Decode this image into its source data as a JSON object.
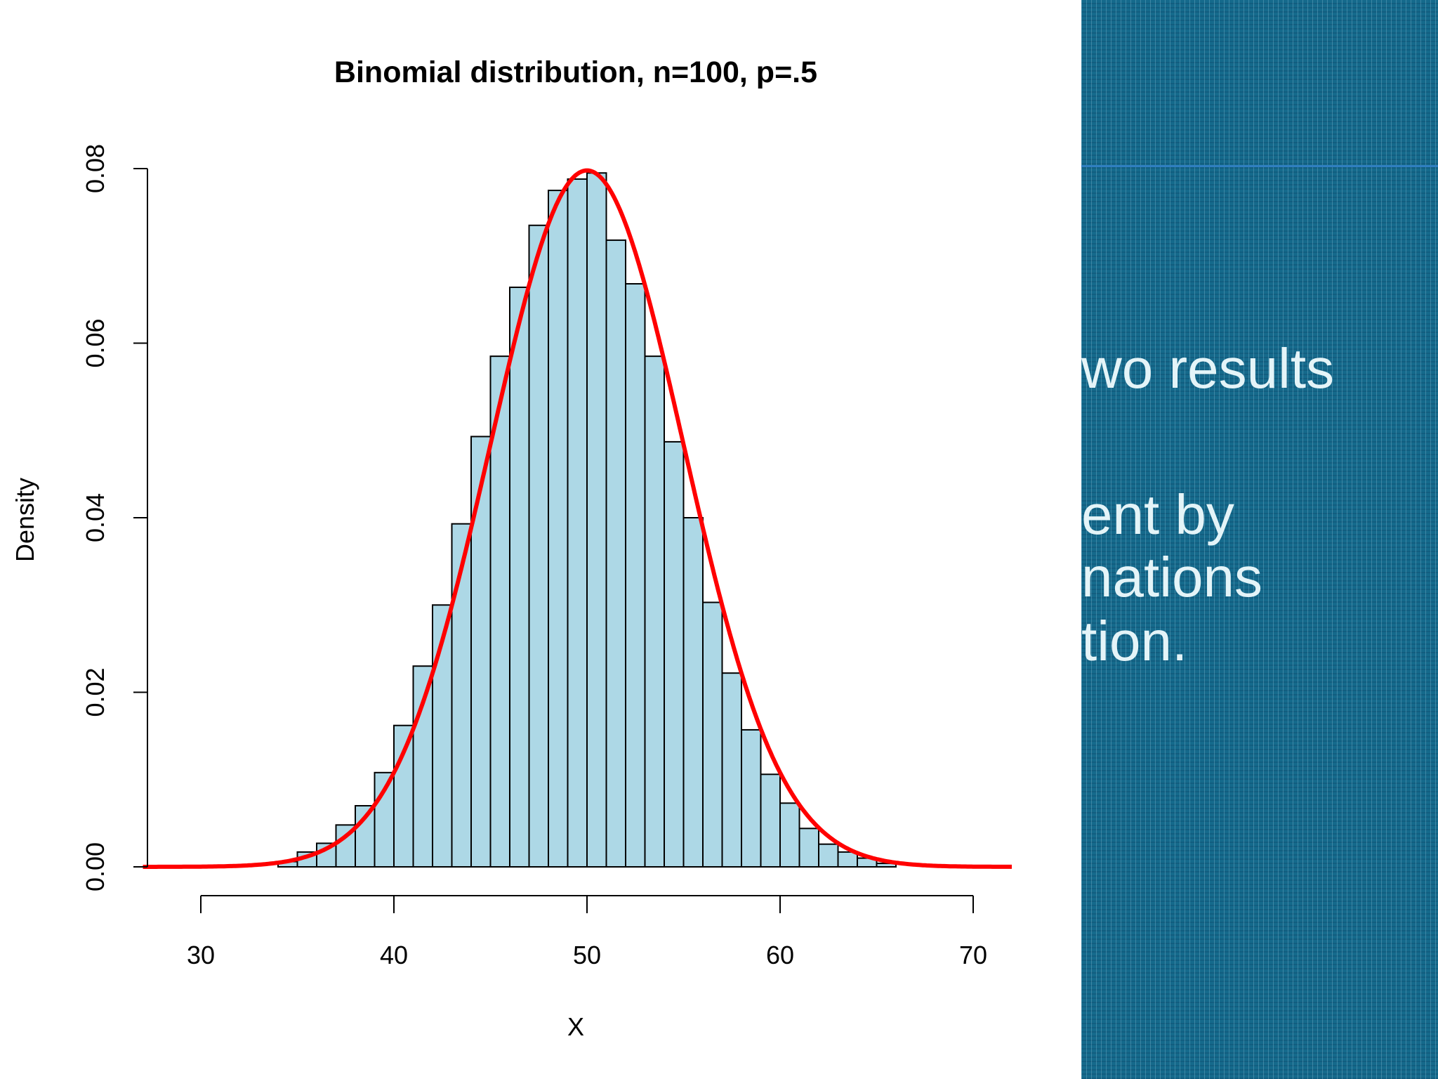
{
  "chart_data": {
    "type": "bar",
    "title": "Binomial distribution, n=100, p=.5",
    "xlabel": "X",
    "ylabel": "Density",
    "x_ticks": [
      "30",
      "40",
      "50",
      "60",
      "70"
    ],
    "y_ticks": [
      "0.00",
      "0.02",
      "0.04",
      "0.06",
      "0.08"
    ],
    "xlim": [
      26,
      72
    ],
    "ylim": [
      0,
      0.08
    ],
    "bin_width": 1,
    "bin_starts": [
      34,
      35,
      36,
      37,
      38,
      39,
      40,
      41,
      42,
      43,
      44,
      45,
      46,
      47,
      48,
      49,
      50,
      51,
      52,
      53,
      54,
      55,
      56,
      57,
      58,
      59,
      60,
      61,
      62,
      63,
      64,
      65
    ],
    "values": [
      0.0006,
      0.0017,
      0.0027,
      0.0048,
      0.007,
      0.0108,
      0.0162,
      0.023,
      0.03,
      0.0393,
      0.0493,
      0.0585,
      0.0664,
      0.0735,
      0.0775,
      0.0788,
      0.0795,
      0.0718,
      0.0668,
      0.0585,
      0.0487,
      0.04,
      0.0303,
      0.0222,
      0.0157,
      0.0106,
      0.0073,
      0.0044,
      0.0026,
      0.0017,
      0.001,
      0.0004
    ],
    "bar_color": "#add8e6",
    "curve": {
      "name": "Normal density",
      "mean": 50,
      "sd": 5,
      "x_range": [
        27,
        72
      ],
      "color": "#ff0000"
    },
    "grid": false,
    "legend": "none"
  },
  "slide": {
    "lines": [
      "wo results",
      "",
      "ent by",
      "nations",
      "tion."
    ],
    "background": "#156a8c",
    "text_color": "#e4f4f8"
  }
}
